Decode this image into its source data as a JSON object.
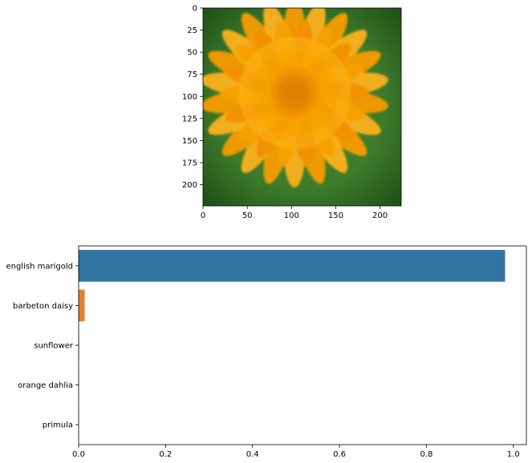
{
  "chart_data": [
    {
      "type": "image",
      "title": "",
      "xlabel": "",
      "ylabel": "",
      "image_subject": "orange flower",
      "xlim": [
        0,
        224
      ],
      "ylim": [
        224,
        0
      ],
      "xticks": [
        0,
        50,
        100,
        150,
        200
      ],
      "yticks": [
        0,
        25,
        50,
        75,
        100,
        125,
        150,
        175,
        200
      ],
      "xtick_labels": [
        "0",
        "50",
        "100",
        "150",
        "200"
      ],
      "ytick_labels": [
        "0",
        "25",
        "50",
        "75",
        "100",
        "125",
        "150",
        "175",
        "200"
      ]
    },
    {
      "type": "bar",
      "orientation": "horizontal",
      "title": "",
      "xlabel": "",
      "ylabel": "",
      "categories": [
        "english marigold",
        "barbeton daisy",
        "sunflower",
        "orange dahlia",
        "primula"
      ],
      "values": [
        0.981,
        0.014,
        0.001,
        0.0005,
        0.0003
      ],
      "colors": [
        "#3274a1",
        "#e1812c",
        "#3a923a",
        "#c03d3e",
        "#9372b2"
      ],
      "xlim": [
        0,
        1.03
      ],
      "xticks": [
        0.0,
        0.2,
        0.4,
        0.6,
        0.8,
        1.0
      ],
      "xtick_labels": [
        "0.0",
        "0.2",
        "0.4",
        "0.6",
        "0.8",
        "1.0"
      ],
      "grid": false
    }
  ]
}
